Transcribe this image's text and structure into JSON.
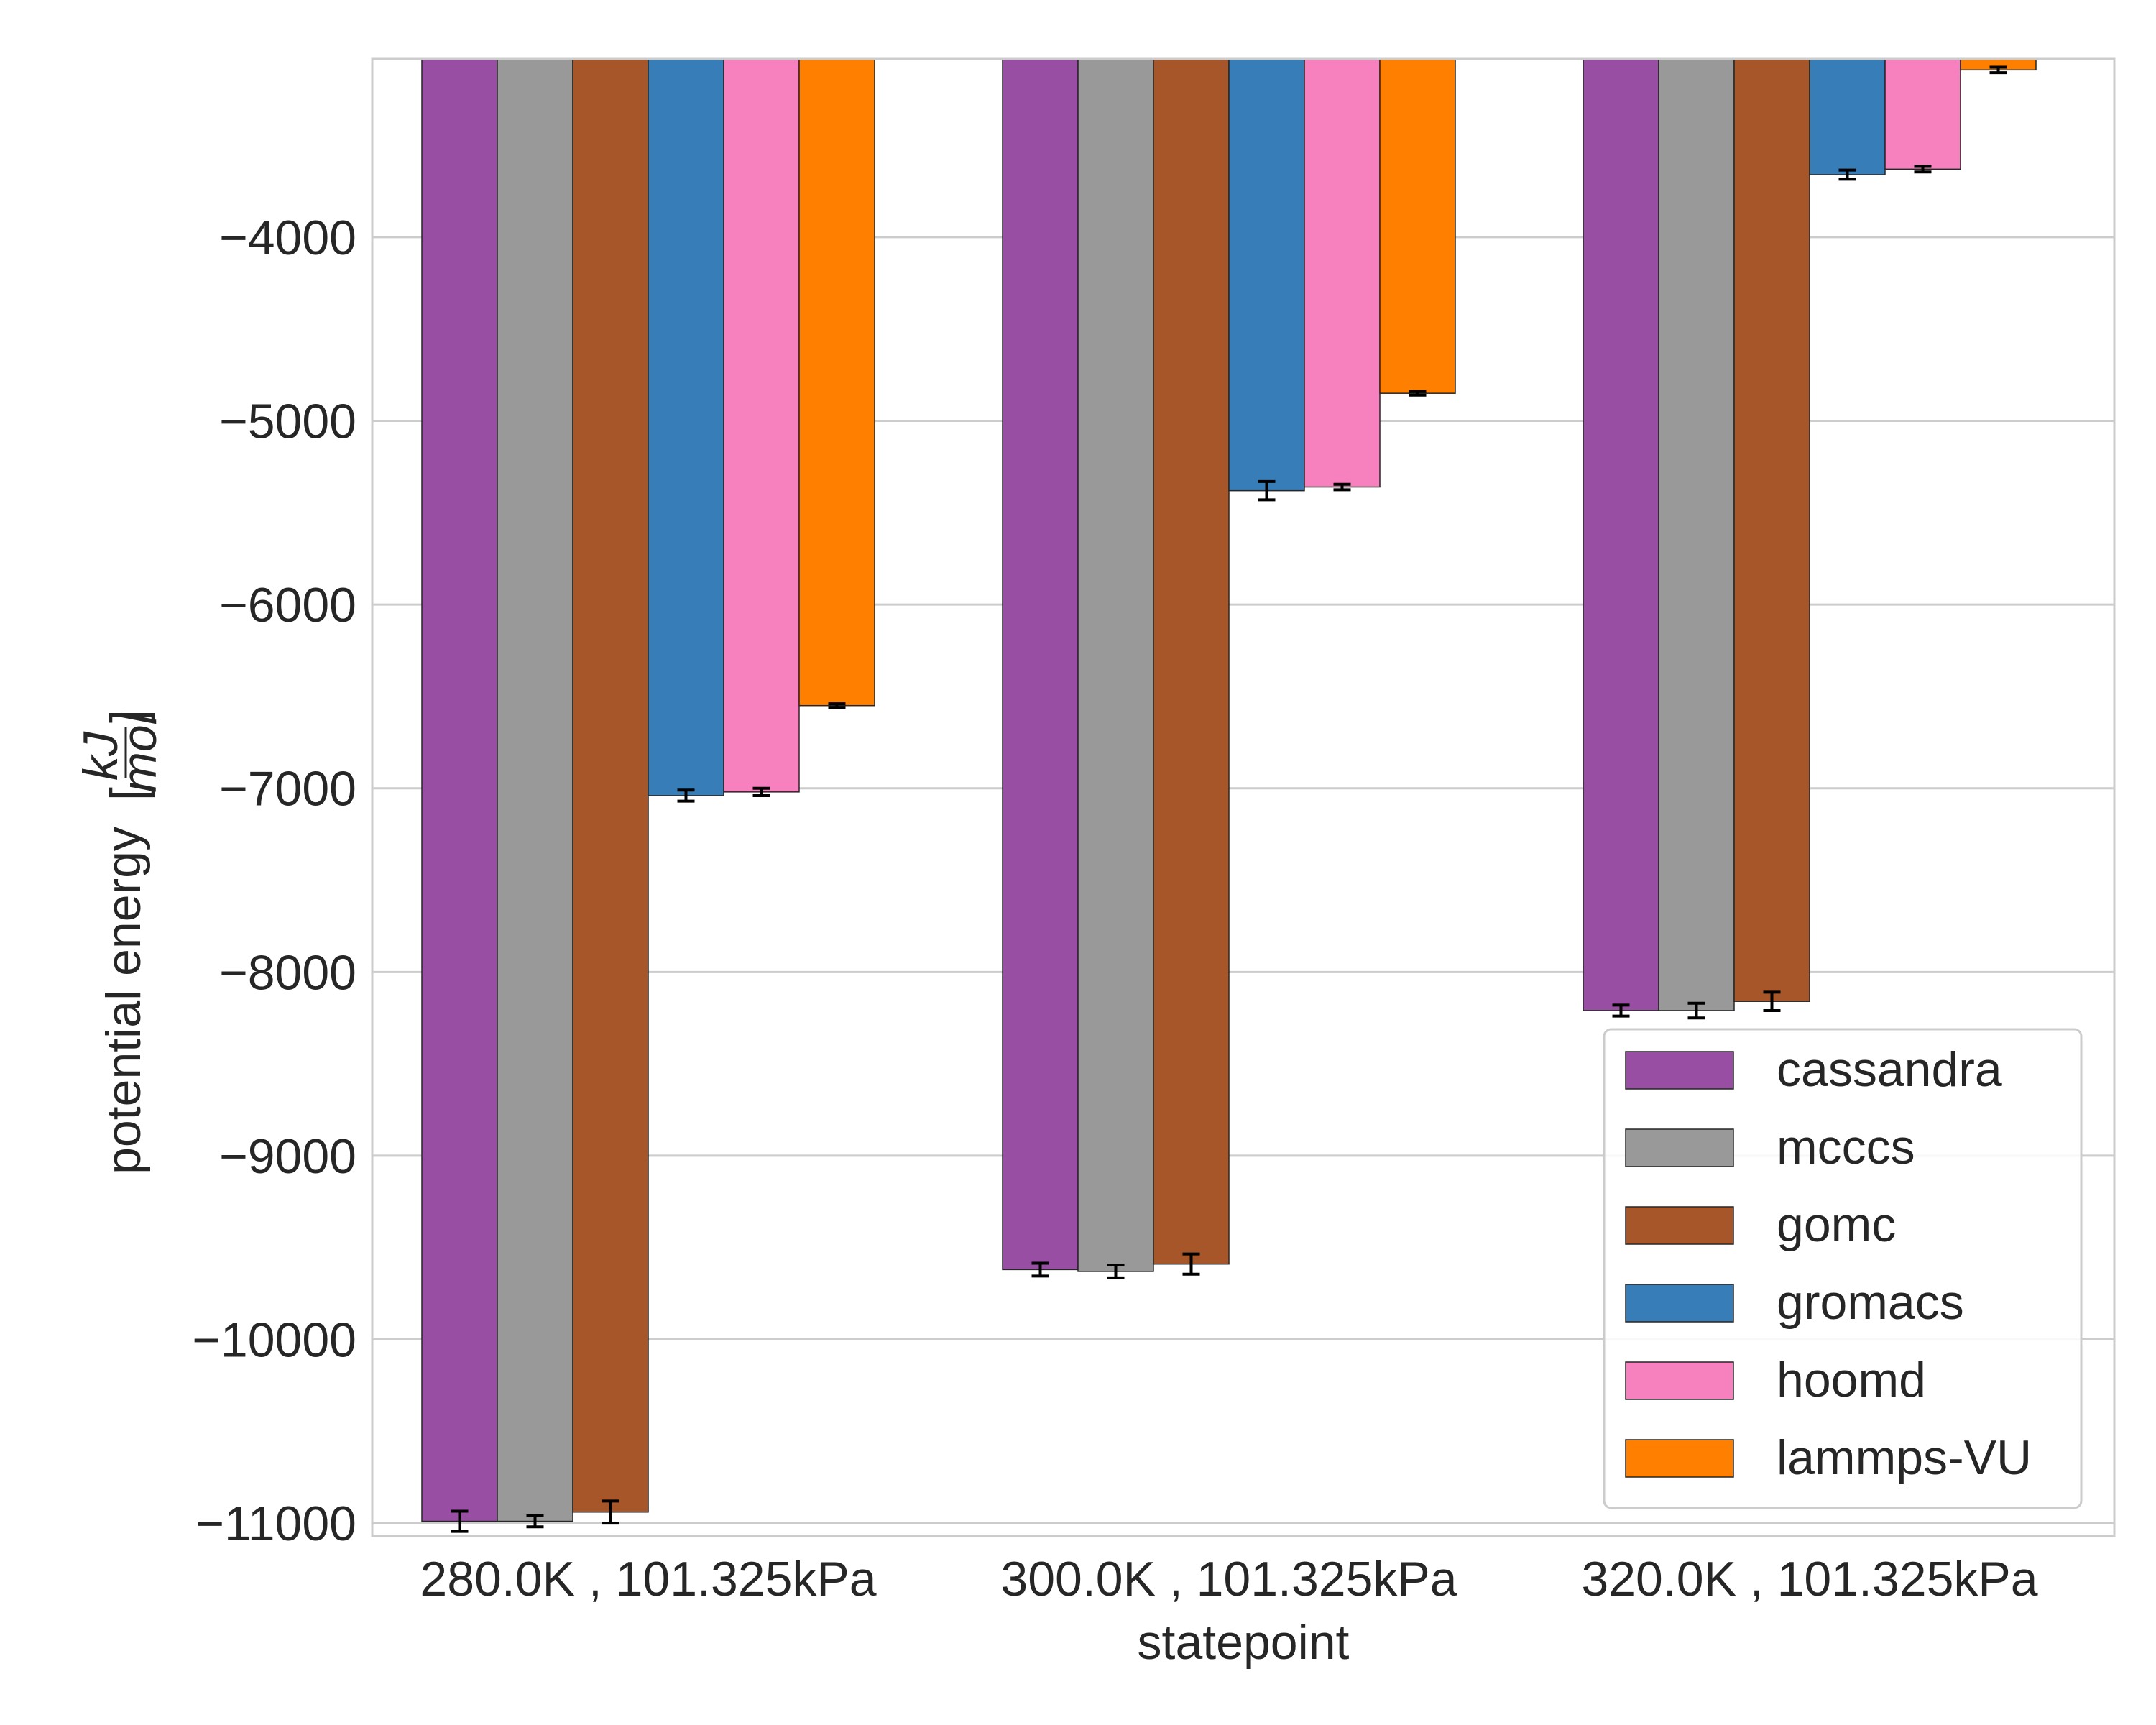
{
  "chart_data": {
    "type": "bar",
    "xlabel": "statepoint",
    "ylabel": {
      "text": "potential energy",
      "unit_numerator": "kJ",
      "unit_denominator": "mol",
      "bracket_open": "[",
      "bracket_close": "]"
    },
    "categories": [
      "280.0K , 101.325kPa",
      "300.0K , 101.325kPa",
      "320.0K , 101.325kPa"
    ],
    "ylim": [
      -11070,
      -3030
    ],
    "yticks": [
      -4000,
      -5000,
      -6000,
      -7000,
      -8000,
      -9000,
      -10000,
      -11000
    ],
    "ytick_labels": [
      "−4000",
      "−5000",
      "−6000",
      "−7000",
      "−8000",
      "−9000",
      "−10000",
      "−11000"
    ],
    "grid": true,
    "legend_position": "lower-right",
    "series": [
      {
        "name": "cassandra",
        "color": "#984EA3",
        "values": [
          -10990,
          -9620,
          -8210
        ],
        "errors": [
          55,
          35,
          30
        ]
      },
      {
        "name": "mcccs",
        "color": "#999999",
        "values": [
          -10990,
          -9630,
          -8210
        ],
        "errors": [
          30,
          35,
          40
        ]
      },
      {
        "name": "gomc",
        "color": "#A65628",
        "values": [
          -10940,
          -9590,
          -8160
        ],
        "errors": [
          60,
          55,
          50
        ]
      },
      {
        "name": "gromacs",
        "color": "#377EB8",
        "values": [
          -7040,
          -5380,
          -3660
        ],
        "errors": [
          30,
          50,
          25
        ]
      },
      {
        "name": "hoomd",
        "color": "#F781BF",
        "values": [
          -7020,
          -5360,
          -3630
        ],
        "errors": [
          20,
          15,
          15
        ]
      },
      {
        "name": "lammps-VU",
        "color": "#FF7F00",
        "values": [
          -6550,
          -4850,
          -3090
        ],
        "errors": [
          10,
          10,
          15
        ]
      }
    ]
  }
}
